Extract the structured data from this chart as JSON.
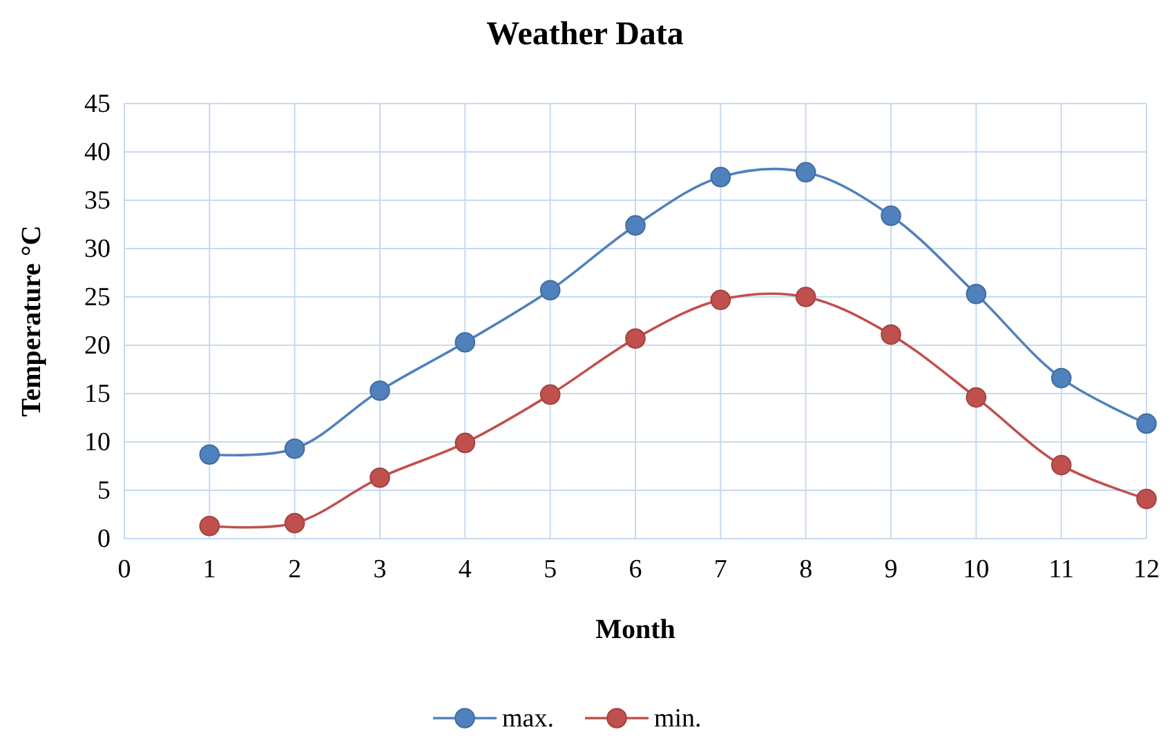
{
  "chart_data": {
    "type": "line",
    "title": "Weather Data",
    "xlabel": "Month",
    "ylabel": "Temperature °C",
    "x": [
      1,
      2,
      3,
      4,
      5,
      6,
      7,
      8,
      9,
      10,
      11,
      12
    ],
    "series": [
      {
        "name": "max.",
        "color": "#4f81bd",
        "values": [
          8.7,
          9.3,
          15.3,
          20.3,
          25.7,
          32.4,
          37.4,
          37.9,
          33.4,
          25.3,
          16.6,
          11.9
        ]
      },
      {
        "name": "min.",
        "color": "#c0504d",
        "values": [
          1.3,
          1.6,
          6.3,
          9.9,
          14.9,
          20.7,
          24.7,
          25.0,
          21.1,
          14.6,
          7.6,
          4.1
        ]
      }
    ],
    "xlim": [
      0,
      12
    ],
    "xticks": [
      0,
      1,
      2,
      3,
      4,
      5,
      6,
      7,
      8,
      9,
      10,
      11,
      12
    ],
    "ylim": [
      0,
      45
    ],
    "yticks": [
      0,
      5,
      10,
      15,
      20,
      25,
      30,
      35,
      40,
      45
    ],
    "grid": true,
    "legend": "bottom",
    "marker": "circle",
    "line_style": "solid"
  }
}
